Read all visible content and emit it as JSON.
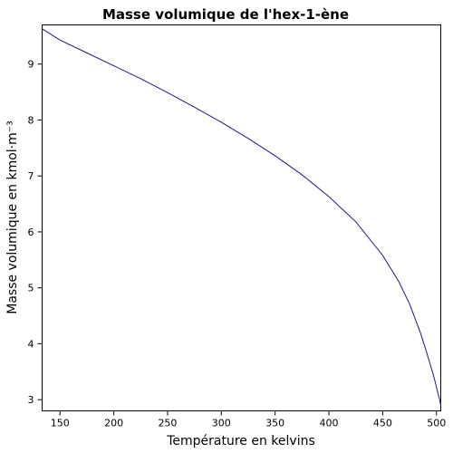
{
  "chart_data": {
    "type": "line",
    "title": "Masse volumique de l'hex-1-ène",
    "xlabel": "Température en kelvins",
    "ylabel": "Masse volumique en kmol·m⁻³",
    "xlim": [
      133.39,
      504
    ],
    "ylim": [
      2.8,
      9.7
    ],
    "xticks": [
      150,
      200,
      250,
      300,
      350,
      400,
      450,
      500
    ],
    "yticks": [
      3,
      4,
      5,
      6,
      7,
      8,
      9
    ],
    "grid": false,
    "series": [
      {
        "color": "#1a1a8c",
        "x": [
          133.39,
          150,
          175,
          200,
          225,
          250,
          275,
          300,
          325,
          350,
          375,
          400,
          425,
          450,
          465,
          475,
          485,
          490,
          495,
          498,
          500,
          502,
          503,
          504
        ],
        "y": [
          9.63,
          9.43,
          9.2,
          8.97,
          8.74,
          8.49,
          8.23,
          7.96,
          7.67,
          7.36,
          7.02,
          6.63,
          6.18,
          5.58,
          5.11,
          4.71,
          4.2,
          3.9,
          3.58,
          3.38,
          3.22,
          3.07,
          3.0,
          2.9
        ]
      }
    ]
  }
}
